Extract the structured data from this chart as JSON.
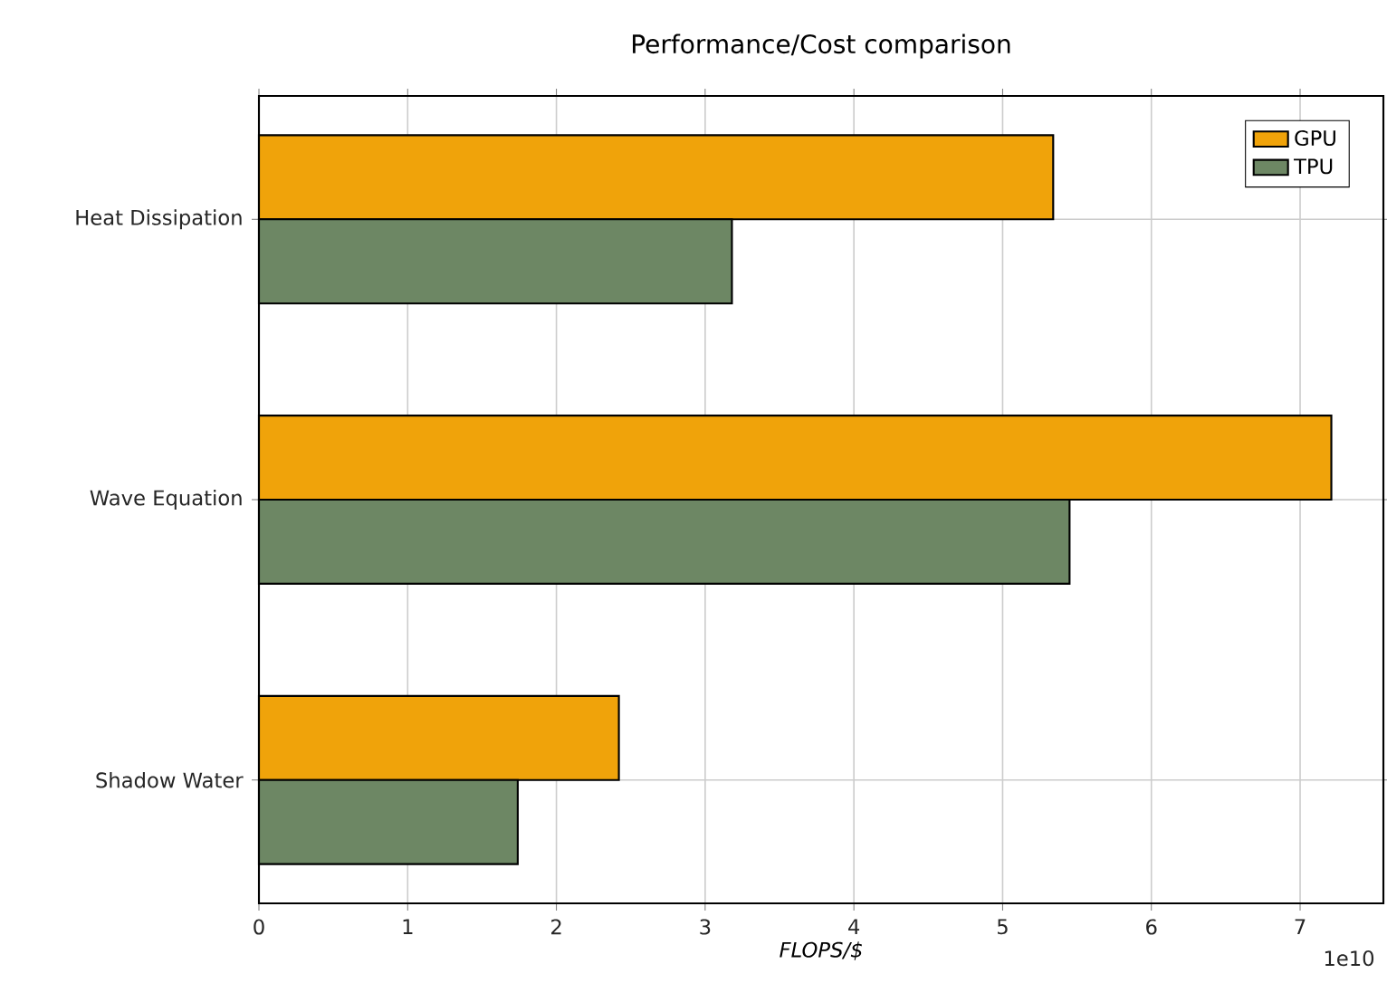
{
  "chart_data": {
    "type": "bar",
    "orientation": "horizontal",
    "title": "Performance/Cost comparison",
    "xlabel": "FLOPS/$",
    "categories": [
      "Heat Dissipation",
      "Wave Equation",
      "Shadow Water"
    ],
    "series": [
      {
        "name": "GPU",
        "color": "#f0a30a",
        "values": [
          5.34,
          7.21,
          2.42
        ]
      },
      {
        "name": "TPU",
        "color": "#6d8764",
        "values": [
          3.18,
          5.45,
          1.74
        ]
      }
    ],
    "xlim": [
      0,
      7.56
    ],
    "xticks": [
      0,
      1,
      2,
      3,
      4,
      5,
      6,
      7
    ],
    "grid": true,
    "legend": "top right",
    "annotations": [
      "1e10"
    ]
  }
}
